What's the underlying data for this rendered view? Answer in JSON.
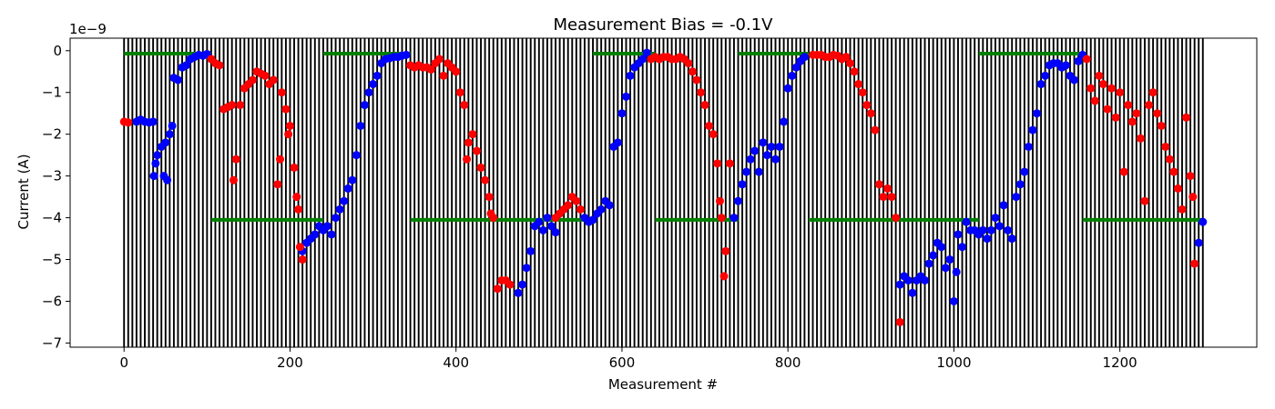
{
  "chart_data": {
    "type": "scatter",
    "title": "Measurement Bias = -0.1V",
    "xlabel": "Measurement #",
    "ylabel": "Current (A)",
    "y_offset_label": "1e−9",
    "xlim": [
      -65,
      1365
    ],
    "ylim": [
      -7.1,
      0.3
    ],
    "xticks": [
      0,
      200,
      400,
      600,
      800,
      1000,
      1200
    ],
    "xtick_labels": [
      "0",
      "200",
      "400",
      "600",
      "800",
      "1000",
      "1200"
    ],
    "yticks": [
      0,
      -1,
      -2,
      -3,
      -4,
      -5,
      -6,
      -7
    ],
    "ytick_labels": [
      "0",
      "−1",
      "−2",
      "−3",
      "−4",
      "−5",
      "−6",
      "−7"
    ],
    "grid": false,
    "colors": {
      "set_points": "#008000",
      "phase_a": "#0000ff",
      "phase_b": "#ff0000",
      "vertical_lines": "#000000"
    },
    "vertical_lines": {
      "start": 0,
      "end": 1300,
      "step": 5
    },
    "set_point_segments": [
      {
        "x0": 0,
        "x1": 105,
        "y": -0.07
      },
      {
        "x0": 105,
        "x1": 240,
        "y": -4.05
      },
      {
        "x0": 240,
        "x1": 345,
        "y": -0.07
      },
      {
        "x0": 345,
        "x1": 565,
        "y": -4.05
      },
      {
        "x0": 565,
        "x1": 640,
        "y": -0.07
      },
      {
        "x0": 640,
        "x1": 740,
        "y": -4.05
      },
      {
        "x0": 740,
        "x1": 825,
        "y": -0.07
      },
      {
        "x0": 825,
        "x1": 1030,
        "y": -4.05
      },
      {
        "x0": 1030,
        "x1": 1155,
        "y": -0.07
      },
      {
        "x0": 1155,
        "x1": 1300,
        "y": -4.05
      }
    ],
    "series": [
      {
        "color": "#0000ff",
        "points": [
          [
            15,
            -1.7
          ],
          [
            20,
            -1.65
          ],
          [
            25,
            -1.7
          ],
          [
            30,
            -1.72
          ],
          [
            35,
            -1.7
          ],
          [
            36,
            -3.0
          ],
          [
            38,
            -2.7
          ],
          [
            40,
            -2.5
          ],
          [
            45,
            -2.3
          ],
          [
            48,
            -3.0
          ],
          [
            50,
            -2.2
          ],
          [
            52,
            -3.1
          ],
          [
            55,
            -2.0
          ],
          [
            58,
            -1.8
          ],
          [
            60,
            -0.65
          ],
          [
            65,
            -0.7
          ],
          [
            70,
            -0.4
          ],
          [
            75,
            -0.35
          ],
          [
            80,
            -0.2
          ],
          [
            85,
            -0.15
          ],
          [
            90,
            -0.1
          ],
          [
            95,
            -0.12
          ],
          [
            100,
            -0.08
          ],
          [
            215,
            -4.8
          ],
          [
            220,
            -4.6
          ],
          [
            225,
            -4.5
          ],
          [
            230,
            -4.4
          ],
          [
            235,
            -4.2
          ],
          [
            240,
            -4.3
          ],
          [
            245,
            -4.2
          ],
          [
            250,
            -4.4
          ],
          [
            255,
            -4.0
          ],
          [
            260,
            -3.8
          ],
          [
            265,
            -3.6
          ],
          [
            270,
            -3.3
          ],
          [
            275,
            -3.1
          ],
          [
            280,
            -2.5
          ],
          [
            285,
            -1.8
          ],
          [
            290,
            -1.3
          ],
          [
            295,
            -1.0
          ],
          [
            300,
            -0.8
          ],
          [
            305,
            -0.6
          ],
          [
            310,
            -0.3
          ],
          [
            315,
            -0.2
          ],
          [
            320,
            -0.18
          ],
          [
            325,
            -0.15
          ],
          [
            330,
            -0.15
          ],
          [
            335,
            -0.12
          ],
          [
            340,
            -0.1
          ],
          [
            475,
            -5.8
          ],
          [
            480,
            -5.6
          ],
          [
            485,
            -5.2
          ],
          [
            490,
            -4.8
          ],
          [
            495,
            -4.2
          ],
          [
            500,
            -4.1
          ],
          [
            505,
            -4.3
          ],
          [
            510,
            -4.0
          ],
          [
            515,
            -4.2
          ],
          [
            520,
            -4.35
          ],
          [
            555,
            -4.0
          ],
          [
            560,
            -4.1
          ],
          [
            565,
            -4.05
          ],
          [
            570,
            -3.9
          ],
          [
            575,
            -3.8
          ],
          [
            580,
            -3.6
          ],
          [
            585,
            -3.7
          ],
          [
            590,
            -2.3
          ],
          [
            595,
            -2.2
          ],
          [
            600,
            -1.5
          ],
          [
            605,
            -1.1
          ],
          [
            610,
            -0.6
          ],
          [
            615,
            -0.4
          ],
          [
            620,
            -0.3
          ],
          [
            625,
            -0.2
          ],
          [
            630,
            -0.05
          ],
          [
            735,
            -4.0
          ],
          [
            740,
            -3.6
          ],
          [
            745,
            -3.2
          ],
          [
            750,
            -2.9
          ],
          [
            755,
            -2.6
          ],
          [
            760,
            -2.4
          ],
          [
            765,
            -2.9
          ],
          [
            770,
            -2.2
          ],
          [
            775,
            -2.5
          ],
          [
            780,
            -2.3
          ],
          [
            785,
            -2.6
          ],
          [
            790,
            -2.3
          ],
          [
            795,
            -1.7
          ],
          [
            800,
            -0.9
          ],
          [
            805,
            -0.6
          ],
          [
            810,
            -0.4
          ],
          [
            815,
            -0.25
          ],
          [
            820,
            -0.15
          ],
          [
            935,
            -5.6
          ],
          [
            940,
            -5.4
          ],
          [
            945,
            -5.5
          ],
          [
            950,
            -5.8
          ],
          [
            955,
            -5.5
          ],
          [
            960,
            -5.4
          ],
          [
            965,
            -5.5
          ],
          [
            970,
            -5.1
          ],
          [
            975,
            -4.9
          ],
          [
            980,
            -4.6
          ],
          [
            985,
            -4.7
          ],
          [
            990,
            -5.2
          ],
          [
            995,
            -5.0
          ],
          [
            1000,
            -6.0
          ],
          [
            1003,
            -5.3
          ],
          [
            1005,
            -4.4
          ],
          [
            1010,
            -4.7
          ],
          [
            1015,
            -4.1
          ],
          [
            1020,
            -4.3
          ],
          [
            1025,
            -4.3
          ],
          [
            1030,
            -4.4
          ],
          [
            1035,
            -4.3
          ],
          [
            1040,
            -4.5
          ],
          [
            1045,
            -4.3
          ],
          [
            1050,
            -4.0
          ],
          [
            1055,
            -4.2
          ],
          [
            1060,
            -3.7
          ],
          [
            1065,
            -4.3
          ],
          [
            1070,
            -4.5
          ],
          [
            1075,
            -3.5
          ],
          [
            1080,
            -3.2
          ],
          [
            1085,
            -2.9
          ],
          [
            1090,
            -2.3
          ],
          [
            1095,
            -1.9
          ],
          [
            1100,
            -1.5
          ],
          [
            1105,
            -0.8
          ],
          [
            1110,
            -0.6
          ],
          [
            1115,
            -0.35
          ],
          [
            1120,
            -0.3
          ],
          [
            1125,
            -0.3
          ],
          [
            1130,
            -0.4
          ],
          [
            1135,
            -0.35
          ],
          [
            1140,
            -0.6
          ],
          [
            1145,
            -0.7
          ],
          [
            1150,
            -0.25
          ],
          [
            1155,
            -0.1
          ],
          [
            1295,
            -4.6
          ],
          [
            1300,
            -4.1
          ]
        ]
      },
      {
        "color": "#ff0000",
        "points": [
          [
            0,
            -1.7
          ],
          [
            5,
            -1.72
          ],
          [
            105,
            -0.2
          ],
          [
            110,
            -0.3
          ],
          [
            115,
            -0.35
          ],
          [
            120,
            -1.4
          ],
          [
            125,
            -1.35
          ],
          [
            130,
            -1.3
          ],
          [
            132,
            -3.1
          ],
          [
            135,
            -2.6
          ],
          [
            140,
            -1.3
          ],
          [
            145,
            -0.9
          ],
          [
            150,
            -0.8
          ],
          [
            155,
            -0.7
          ],
          [
            160,
            -0.5
          ],
          [
            165,
            -0.55
          ],
          [
            170,
            -0.6
          ],
          [
            175,
            -0.8
          ],
          [
            180,
            -0.7
          ],
          [
            185,
            -3.2
          ],
          [
            188,
            -2.6
          ],
          [
            190,
            -1.0
          ],
          [
            195,
            -1.4
          ],
          [
            198,
            -2.0
          ],
          [
            200,
            -1.8
          ],
          [
            205,
            -2.8
          ],
          [
            208,
            -3.5
          ],
          [
            210,
            -3.8
          ],
          [
            212,
            -4.7
          ],
          [
            215,
            -5.0
          ],
          [
            345,
            -0.35
          ],
          [
            350,
            -0.4
          ],
          [
            355,
            -0.35
          ],
          [
            360,
            -0.4
          ],
          [
            365,
            -0.4
          ],
          [
            370,
            -0.45
          ],
          [
            375,
            -0.3
          ],
          [
            380,
            -0.2
          ],
          [
            385,
            -0.6
          ],
          [
            390,
            -0.3
          ],
          [
            395,
            -0.4
          ],
          [
            400,
            -0.5
          ],
          [
            405,
            -1.0
          ],
          [
            410,
            -1.3
          ],
          [
            413,
            -2.6
          ],
          [
            415,
            -2.2
          ],
          [
            420,
            -2.0
          ],
          [
            425,
            -2.4
          ],
          [
            430,
            -2.8
          ],
          [
            435,
            -3.1
          ],
          [
            440,
            -3.5
          ],
          [
            442,
            -3.9
          ],
          [
            445,
            -4.0
          ],
          [
            450,
            -5.7
          ],
          [
            455,
            -5.5
          ],
          [
            460,
            -5.5
          ],
          [
            465,
            -5.6
          ],
          [
            520,
            -4.0
          ],
          [
            525,
            -3.9
          ],
          [
            530,
            -3.8
          ],
          [
            535,
            -3.7
          ],
          [
            540,
            -3.5
          ],
          [
            545,
            -3.6
          ],
          [
            550,
            -3.8
          ],
          [
            635,
            -0.2
          ],
          [
            640,
            -0.15
          ],
          [
            645,
            -0.2
          ],
          [
            650,
            -0.15
          ],
          [
            655,
            -0.15
          ],
          [
            660,
            -0.2
          ],
          [
            665,
            -0.2
          ],
          [
            670,
            -0.15
          ],
          [
            675,
            -0.2
          ],
          [
            680,
            -0.3
          ],
          [
            685,
            -0.5
          ],
          [
            690,
            -0.7
          ],
          [
            695,
            -1.0
          ],
          [
            700,
            -1.3
          ],
          [
            705,
            -1.8
          ],
          [
            710,
            -2.0
          ],
          [
            715,
            -2.7
          ],
          [
            718,
            -3.6
          ],
          [
            720,
            -4.0
          ],
          [
            723,
            -5.4
          ],
          [
            725,
            -4.8
          ],
          [
            730,
            -2.7
          ],
          [
            830,
            -0.1
          ],
          [
            835,
            -0.1
          ],
          [
            840,
            -0.1
          ],
          [
            845,
            -0.15
          ],
          [
            850,
            -0.15
          ],
          [
            855,
            -0.1
          ],
          [
            860,
            -0.12
          ],
          [
            865,
            -0.2
          ],
          [
            870,
            -0.15
          ],
          [
            875,
            -0.3
          ],
          [
            880,
            -0.5
          ],
          [
            885,
            -0.8
          ],
          [
            890,
            -1.0
          ],
          [
            895,
            -1.3
          ],
          [
            900,
            -1.5
          ],
          [
            905,
            -1.9
          ],
          [
            910,
            -3.2
          ],
          [
            915,
            -3.5
          ],
          [
            920,
            -3.3
          ],
          [
            925,
            -3.5
          ],
          [
            930,
            -4.0
          ],
          [
            935,
            -6.5
          ],
          [
            1160,
            -0.2
          ],
          [
            1165,
            -0.9
          ],
          [
            1170,
            -1.2
          ],
          [
            1175,
            -0.6
          ],
          [
            1180,
            -0.8
          ],
          [
            1185,
            -1.4
          ],
          [
            1190,
            -0.9
          ],
          [
            1195,
            -1.6
          ],
          [
            1200,
            -1.0
          ],
          [
            1205,
            -2.9
          ],
          [
            1210,
            -1.3
          ],
          [
            1215,
            -1.7
          ],
          [
            1220,
            -1.5
          ],
          [
            1225,
            -2.1
          ],
          [
            1230,
            -3.6
          ],
          [
            1235,
            -1.3
          ],
          [
            1240,
            -1.0
          ],
          [
            1245,
            -1.5
          ],
          [
            1250,
            -1.8
          ],
          [
            1255,
            -2.3
          ],
          [
            1260,
            -2.6
          ],
          [
            1265,
            -2.9
          ],
          [
            1270,
            -3.3
          ],
          [
            1275,
            -3.8
          ],
          [
            1280,
            -1.6
          ],
          [
            1285,
            -3.0
          ],
          [
            1288,
            -3.5
          ],
          [
            1290,
            -5.1
          ]
        ]
      }
    ]
  }
}
